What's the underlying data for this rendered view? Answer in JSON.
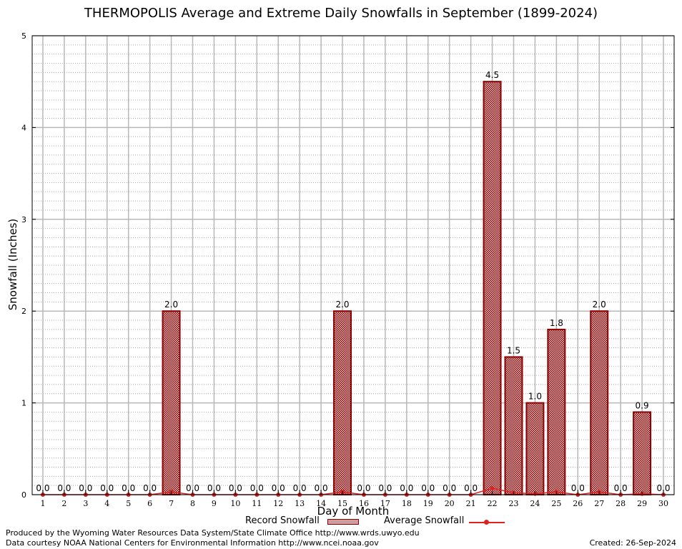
{
  "chart_data": {
    "type": "bar",
    "title": "THERMOPOLIS Average and Extreme Daily Snowfalls in September (1899-2024)",
    "xlabel": "Day of Month",
    "ylabel": "Snowfall (Inches)",
    "ylim": [
      0,
      5
    ],
    "yticks": [
      "0",
      "1",
      "2",
      "3",
      "4",
      "5"
    ],
    "grid": true,
    "categories": [
      "1",
      "2",
      "3",
      "4",
      "5",
      "6",
      "7",
      "8",
      "9",
      "10",
      "11",
      "12",
      "13",
      "14",
      "15",
      "16",
      "17",
      "18",
      "19",
      "20",
      "21",
      "22",
      "23",
      "24",
      "25",
      "26",
      "27",
      "28",
      "29",
      "30"
    ],
    "series": [
      {
        "name": "Record Snowfall",
        "values": [
          0,
          0,
          0,
          0,
          0,
          0,
          2.0,
          0,
          0,
          0,
          0,
          0,
          0,
          0,
          2.0,
          0,
          0,
          0,
          0,
          0,
          0,
          4.5,
          1.5,
          1.0,
          1.8,
          0,
          2.0,
          0,
          0.9,
          0
        ],
        "labels": [
          "0.0",
          "0.0",
          "0.0",
          "0.0",
          "0.0",
          "0.0",
          "2.0",
          "0.0",
          "0.0",
          "0.0",
          "0.0",
          "0.0",
          "0.0",
          "0.0",
          "2.0",
          "0.0",
          "0.0",
          "0.0",
          "0.0",
          "0.0",
          "0.0",
          "4.5",
          "1.5",
          "1.0",
          "1.8",
          "0.0",
          "2.0",
          "0.0",
          "0.9",
          "0.0"
        ],
        "color": "#8b0000"
      },
      {
        "name": "Average Snowfall",
        "values": [
          0,
          0,
          0,
          0,
          0,
          0,
          0.03,
          0,
          0,
          0,
          0,
          0,
          0,
          0,
          0.03,
          0,
          0,
          0,
          0,
          0,
          0,
          0.07,
          0.02,
          0.01,
          0.03,
          0,
          0.03,
          0,
          0.01,
          0
        ],
        "color": "#dd2222"
      }
    ],
    "legend": "bottom-center"
  },
  "footer": {
    "credit_line1": "Produced by the Wyoming Water Resources Data System/State Climate Office http://www.wrds.uwyo.edu",
    "credit_line2": "Data courtesy NOAA National Centers for Environmental Information http://www.ncei.noaa.gov",
    "created": "Created:  26-Sep-2024"
  }
}
